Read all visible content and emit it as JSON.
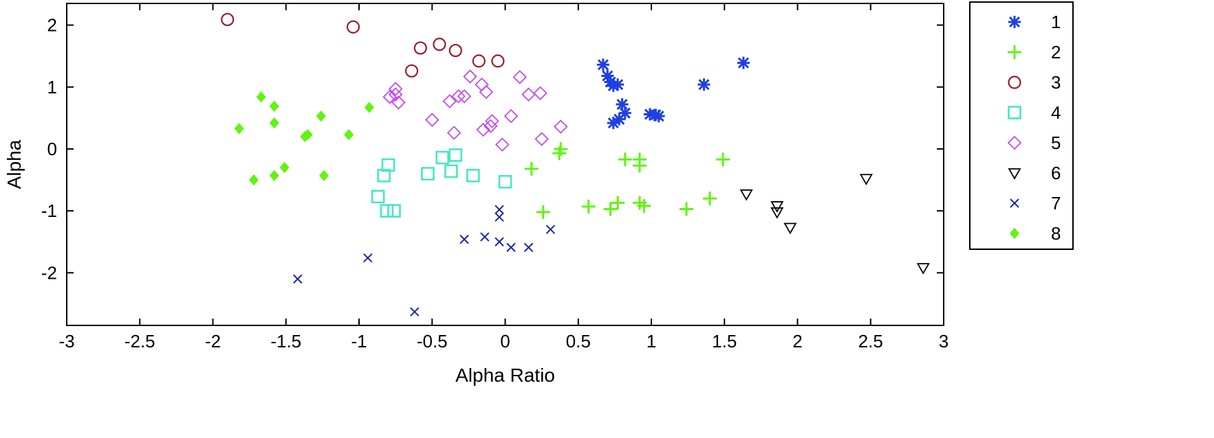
{
  "chart_data": {
    "type": "scatter",
    "xlabel": "Alpha Ratio",
    "ylabel": "Alpha",
    "xlim": [
      -3,
      3
    ],
    "ylim": [
      -2.85,
      2.35
    ],
    "xticks": [
      "-3",
      "-2.5",
      "-2",
      "-1.5",
      "-1",
      "-0.5",
      "0",
      "0.5",
      "1",
      "1.5",
      "2",
      "2.5",
      "3"
    ],
    "yticks": [
      "2",
      "1",
      "0",
      "-1",
      "-2"
    ],
    "grid": false,
    "legend_position": "outside-right",
    "series": [
      {
        "name": "1",
        "marker": "asterisk",
        "color": "#1f3fe0",
        "points": [
          [
            0.67,
            1.36
          ],
          [
            0.7,
            1.18
          ],
          [
            0.72,
            1.08
          ],
          [
            0.74,
            1.02
          ],
          [
            0.77,
            1.04
          ],
          [
            0.8,
            0.72
          ],
          [
            0.82,
            0.58
          ],
          [
            0.78,
            0.48
          ],
          [
            0.74,
            0.42
          ],
          [
            0.99,
            0.56
          ],
          [
            1.03,
            0.55
          ],
          [
            1.05,
            0.53
          ],
          [
            1.36,
            1.04
          ],
          [
            1.63,
            1.39
          ]
        ]
      },
      {
        "name": "2",
        "marker": "plus",
        "color": "#5ff50f",
        "points": [
          [
            0.38,
            0.0
          ],
          [
            0.37,
            -0.07
          ],
          [
            0.18,
            -0.32
          ],
          [
            0.82,
            -0.17
          ],
          [
            0.92,
            -0.17
          ],
          [
            0.92,
            -0.27
          ],
          [
            1.49,
            -0.17
          ],
          [
            0.26,
            -1.02
          ],
          [
            0.57,
            -0.93
          ],
          [
            0.72,
            -0.97
          ],
          [
            0.77,
            -0.87
          ],
          [
            0.92,
            -0.87
          ],
          [
            0.95,
            -0.92
          ],
          [
            1.24,
            -0.97
          ],
          [
            1.4,
            -0.8
          ]
        ]
      },
      {
        "name": "3",
        "marker": "circle",
        "color": "#9b1b2a",
        "points": [
          [
            -1.9,
            2.09
          ],
          [
            -1.04,
            1.97
          ],
          [
            -0.58,
            1.63
          ],
          [
            -0.45,
            1.69
          ],
          [
            -0.34,
            1.59
          ],
          [
            -0.64,
            1.26
          ],
          [
            -0.18,
            1.42
          ],
          [
            -0.05,
            1.42
          ]
        ]
      },
      {
        "name": "4",
        "marker": "square",
        "color": "#47e6c4",
        "points": [
          [
            -0.8,
            -0.26
          ],
          [
            -0.83,
            -0.43
          ],
          [
            -0.87,
            -0.77
          ],
          [
            -0.81,
            -1.0
          ],
          [
            -0.76,
            -1.0
          ],
          [
            -0.53,
            -0.4
          ],
          [
            -0.43,
            -0.14
          ],
          [
            -0.34,
            -0.1
          ],
          [
            -0.37,
            -0.36
          ],
          [
            -0.22,
            -0.43
          ],
          [
            0.0,
            -0.53
          ]
        ]
      },
      {
        "name": "5",
        "marker": "diamond",
        "color": "#c24cf0",
        "points": [
          [
            -0.79,
            0.84
          ],
          [
            -0.75,
            0.97
          ],
          [
            -0.73,
            0.75
          ],
          [
            -0.75,
            0.88
          ],
          [
            -0.5,
            0.47
          ],
          [
            -0.38,
            0.77
          ],
          [
            -0.35,
            0.26
          ],
          [
            -0.32,
            0.85
          ],
          [
            -0.28,
            0.85
          ],
          [
            -0.24,
            1.17
          ],
          [
            -0.16,
            1.04
          ],
          [
            -0.13,
            0.92
          ],
          [
            -0.15,
            0.31
          ],
          [
            -0.1,
            0.37
          ],
          [
            -0.09,
            0.45
          ],
          [
            0.1,
            1.16
          ],
          [
            0.16,
            0.88
          ],
          [
            0.24,
            0.9
          ],
          [
            0.04,
            0.53
          ],
          [
            -0.02,
            0.07
          ],
          [
            0.25,
            0.16
          ],
          [
            0.38,
            0.36
          ]
        ]
      },
      {
        "name": "6",
        "marker": "triangle-down",
        "color": "#000000",
        "points": [
          [
            1.65,
            -0.73
          ],
          [
            1.86,
            -0.92
          ],
          [
            1.86,
            -1.02
          ],
          [
            1.95,
            -1.27
          ],
          [
            2.47,
            -0.48
          ],
          [
            2.86,
            -1.92
          ]
        ]
      },
      {
        "name": "7",
        "marker": "x",
        "color": "#1a2aa0",
        "points": [
          [
            -1.42,
            -2.1
          ],
          [
            -0.94,
            -1.76
          ],
          [
            -0.62,
            -2.63
          ],
          [
            -0.28,
            -1.46
          ],
          [
            -0.14,
            -1.42
          ],
          [
            -0.04,
            -0.98
          ],
          [
            -0.04,
            -1.1
          ],
          [
            -0.04,
            -1.5
          ],
          [
            0.04,
            -1.59
          ],
          [
            0.16,
            -1.59
          ],
          [
            0.31,
            -1.3
          ]
        ]
      },
      {
        "name": "8",
        "marker": "filled-diamond",
        "color": "#5ff50f",
        "points": [
          [
            -1.67,
            0.84
          ],
          [
            -1.58,
            0.69
          ],
          [
            -1.58,
            0.42
          ],
          [
            -1.82,
            0.33
          ],
          [
            -1.37,
            0.2
          ],
          [
            -1.35,
            0.23
          ],
          [
            -1.26,
            0.53
          ],
          [
            -1.07,
            0.23
          ],
          [
            -0.93,
            0.67
          ],
          [
            -1.72,
            -0.5
          ],
          [
            -1.58,
            -0.43
          ],
          [
            -1.51,
            -0.3
          ],
          [
            -1.24,
            -0.43
          ]
        ]
      }
    ]
  }
}
